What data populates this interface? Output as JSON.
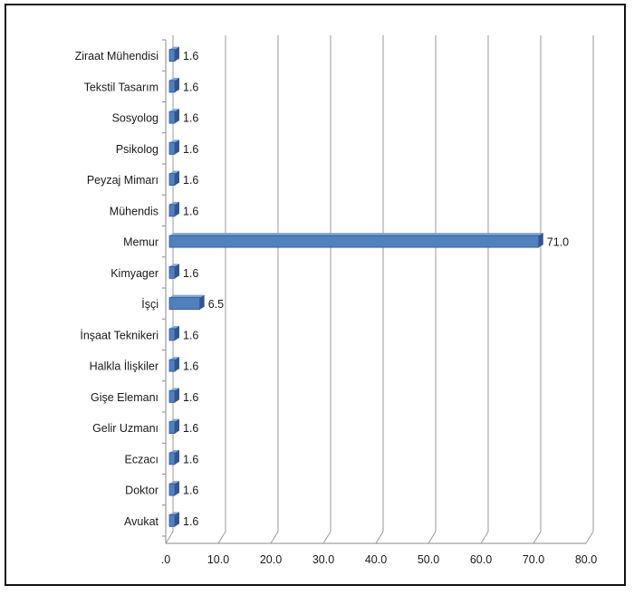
{
  "chart_data": {
    "type": "bar",
    "orientation": "horizontal",
    "title": "",
    "xlabel": "",
    "ylabel": "",
    "categories": [
      "Ziraat Mühendisi",
      "Tekstil Tasarım",
      "Sosyolog",
      "Psikolog",
      "Peyzaj Mimarı",
      "Mühendis",
      "Memur",
      "Kimyager",
      "İşçi",
      "İnşaat Teknikeri",
      "Halkla İlişkiler",
      "Gişe Elemanı",
      "Gelir Uzmanı",
      "Eczacı",
      "Doktor",
      "Avukat"
    ],
    "values": [
      1.6,
      1.6,
      1.6,
      1.6,
      1.6,
      1.6,
      71.0,
      1.6,
      6.5,
      1.6,
      1.6,
      1.6,
      1.6,
      1.6,
      1.6,
      1.6
    ],
    "value_labels": [
      "1.6",
      "1.6",
      "1.6",
      "1.6",
      "1.6",
      "1.6",
      "71.0",
      "1.6",
      "6.5",
      "1.6",
      "1.6",
      "1.6",
      "1.6",
      "1.6",
      "1.6",
      "1.6"
    ],
    "xlim": [
      0,
      80
    ],
    "ticks": [
      0,
      10,
      20,
      30,
      40,
      50,
      60,
      70,
      80
    ],
    "tick_labels": [
      ".0",
      "10.0",
      "20.0",
      "30.0",
      "40.0",
      "50.0",
      "60.0",
      "70.0",
      "80.0"
    ],
    "grid": true,
    "legend": "none",
    "bar_color": "#4f81bd",
    "bar_edge_color": "#2f5597",
    "bar_top_color": "#7ea7d8"
  }
}
